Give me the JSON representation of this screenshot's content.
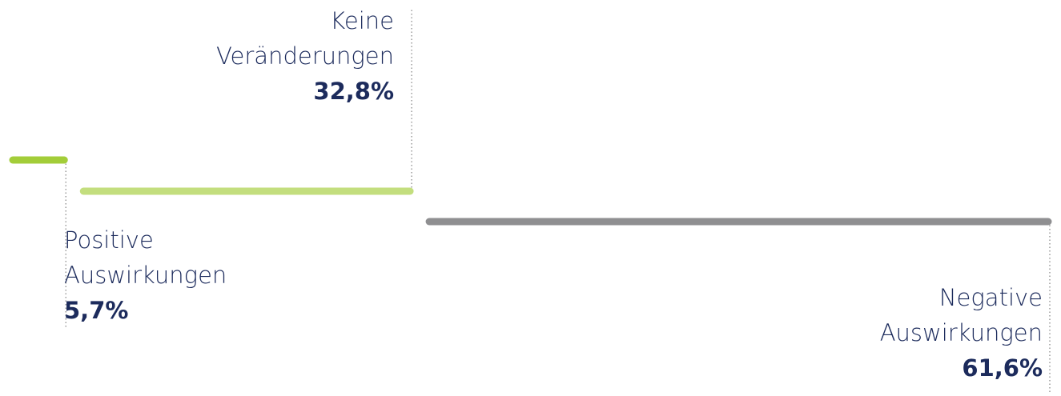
{
  "chart_data": {
    "type": "step-bar",
    "categories": [
      "Positive Auswirkungen",
      "Keine Veränderungen",
      "Negative Auswirkungen"
    ],
    "values": [
      5.7,
      32.8,
      61.6
    ],
    "value_labels": [
      "5,7%",
      "32,8%",
      "61,6%"
    ],
    "colors": [
      "#a3cd39",
      "#c3de7e",
      "#8f8f91"
    ]
  }
}
